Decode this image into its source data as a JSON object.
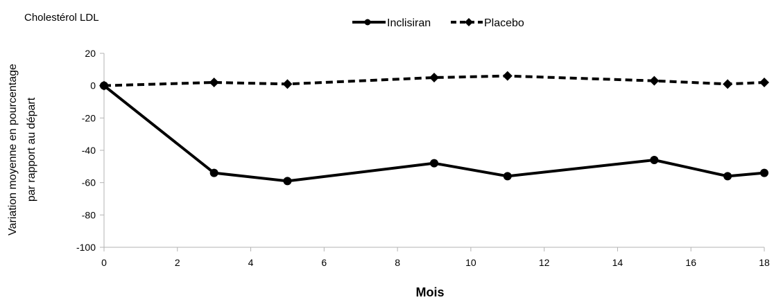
{
  "chart_data": {
    "type": "line",
    "title": "Cholestérol LDL",
    "xlabel": "Mois",
    "ylabel_lines": [
      "Variation moyenne en pourcentage",
      "par rapport au départ"
    ],
    "xlim": [
      0,
      18
    ],
    "ylim": [
      -100,
      20
    ],
    "x_ticks": [
      0,
      2,
      4,
      6,
      8,
      10,
      12,
      14,
      16,
      18
    ],
    "y_ticks": [
      20,
      0,
      -20,
      -40,
      -60,
      -80,
      -100
    ],
    "grid": false,
    "legend_position": "top-center",
    "series": [
      {
        "name": "Inclisiran",
        "line_style": "solid",
        "marker": "circle",
        "color": "#000000",
        "x": [
          0,
          3,
          5,
          9,
          11,
          15,
          17,
          18
        ],
        "y": [
          0,
          -54,
          -59,
          -48,
          -56,
          -46,
          -56,
          -54
        ]
      },
      {
        "name": "Placebo",
        "line_style": "dashed",
        "marker": "diamond",
        "color": "#000000",
        "x": [
          0,
          3,
          5,
          9,
          11,
          15,
          17,
          18
        ],
        "y": [
          0,
          2,
          1,
          5,
          6,
          3,
          1,
          2
        ]
      }
    ]
  }
}
